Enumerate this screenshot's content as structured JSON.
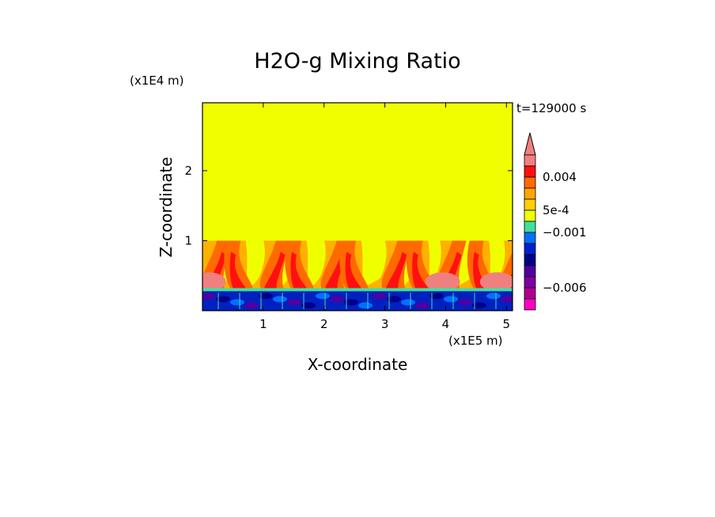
{
  "chart_data": {
    "type": "heatmap",
    "title": "H2O-g Mixing Ratio",
    "xlabel": "X-coordinate",
    "ylabel": "Z-coordinate",
    "x_unit": "(x1E5 m)",
    "y_unit": "(x1E4 m)",
    "time_label": "t=129000 s",
    "xlim": [
      0,
      5.1
    ],
    "ylim": [
      0,
      2.97
    ],
    "x_ticks": [
      1,
      2,
      3,
      4,
      5
    ],
    "y_ticks": [
      1,
      2
    ],
    "x_tick_labels": [
      "1",
      "2",
      "3",
      "4",
      "5"
    ],
    "y_tick_labels": [
      "1",
      "2"
    ],
    "grid": false,
    "background_value_color": "#f0ff00",
    "fields": {
      "surface_layer": {
        "z_range": [
          0,
          0.3
        ],
        "description_color": "#0020c0"
      },
      "plume_layer": {
        "z_range": [
          0.3,
          1.0
        ]
      },
      "upper_region": {
        "z_range": [
          1.0,
          2.97
        ]
      }
    },
    "plume_x_positions": [
      0.08,
      0.55,
      1.05,
      1.55,
      2.05,
      2.45,
      3.05,
      3.55,
      3.95,
      4.55,
      5.0
    ],
    "colorbar": {
      "levels": [
        "#ff0000",
        "#ee82ee"
      ],
      "bins": [
        {
          "color": "#f08080"
        },
        {
          "color": "#ff1010"
        },
        {
          "color": "#ff6a00"
        },
        {
          "color": "#ffa500"
        },
        {
          "color": "#ffd000"
        },
        {
          "color": "#f0ff00"
        },
        {
          "color": "#40e0a0"
        },
        {
          "color": "#0070ff"
        },
        {
          "color": "#0020d0"
        },
        {
          "color": "#000088"
        },
        {
          "color": "#5000a0"
        },
        {
          "color": "#8000a0"
        },
        {
          "color": "#b00090"
        },
        {
          "color": "#ff00c0"
        }
      ],
      "labels": [
        "0.004",
        "5e-4",
        "−0.001",
        "−0.006"
      ]
    }
  }
}
